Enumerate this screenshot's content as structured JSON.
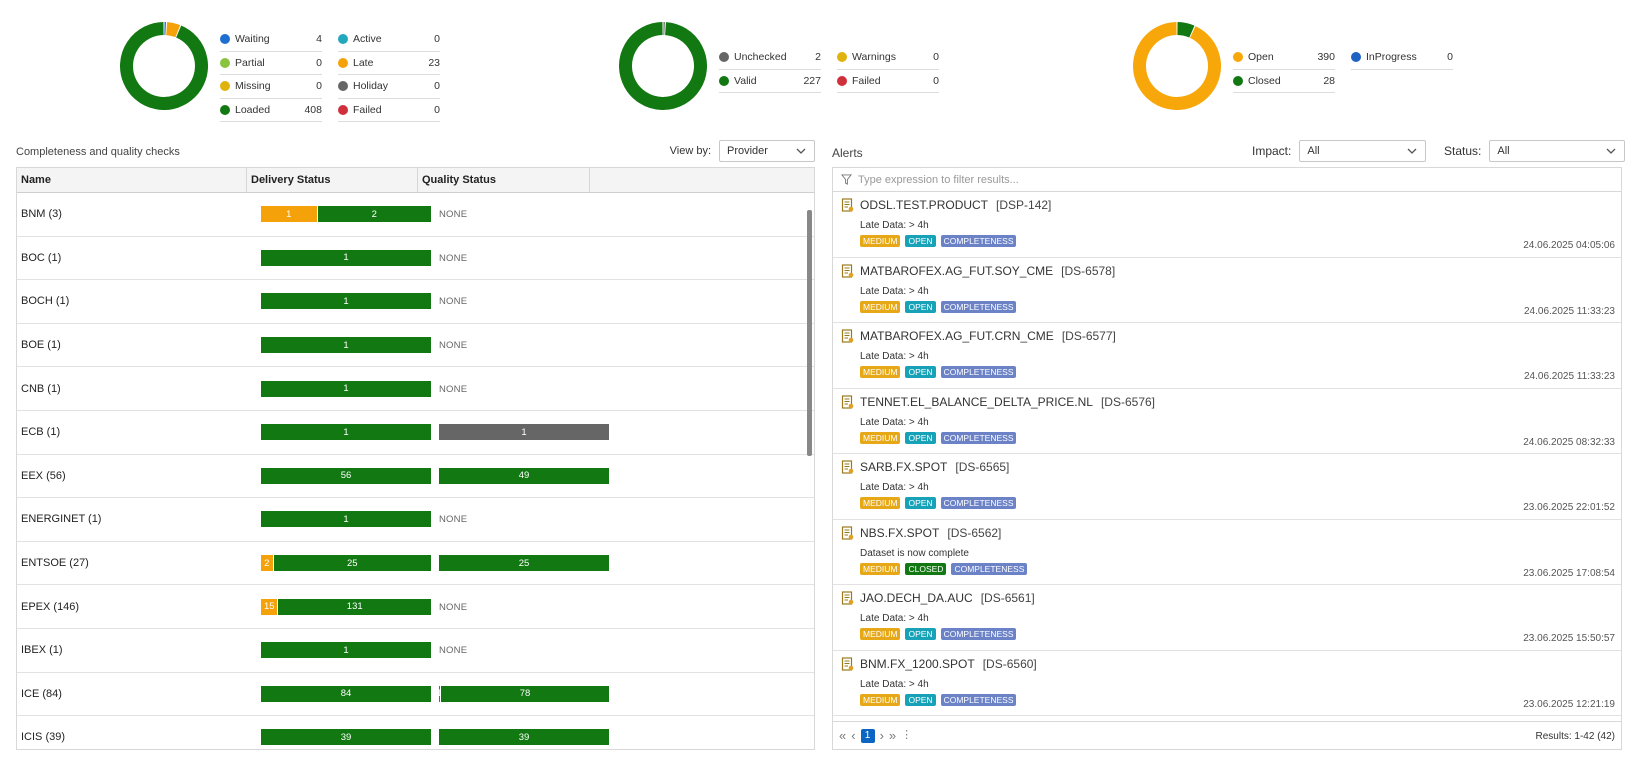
{
  "colors": {
    "blue": "#1e6fd0",
    "lightgreen": "#8ac43f",
    "yellow": "#e0b20e",
    "green": "#127812",
    "teal": "#22a7bd",
    "orange": "#f5a20a",
    "gray": "#666666",
    "red": "#d0303c",
    "open_orange": "#f7a70a",
    "inprogress_blue": "#1e62c4"
  },
  "summaries": [
    {
      "legend": [
        [
          {
            "label": "Waiting",
            "value": "4",
            "color": "#1e6fd0"
          },
          {
            "label": "Partial",
            "value": "0",
            "color": "#8ac43f"
          },
          {
            "label": "Missing",
            "value": "0",
            "color": "#e0b20e"
          },
          {
            "label": "Loaded",
            "value": "408",
            "color": "#127812"
          }
        ],
        [
          {
            "label": "Active",
            "value": "0",
            "color": "#22a7bd"
          },
          {
            "label": "Late",
            "value": "23",
            "color": "#f5a20a"
          },
          {
            "label": "Holiday",
            "value": "0",
            "color": "#666666"
          },
          {
            "label": "Failed",
            "value": "0",
            "color": "#d0303c"
          }
        ]
      ],
      "slices": [
        {
          "value": 4,
          "color": "#1e6fd0"
        },
        {
          "value": 23,
          "color": "#f5a20a"
        },
        {
          "value": 408,
          "color": "#127812"
        }
      ]
    },
    {
      "legend": [
        [
          {
            "label": "Unchecked",
            "value": "2",
            "color": "#666666"
          },
          {
            "label": "Valid",
            "value": "227",
            "color": "#127812"
          }
        ],
        [
          {
            "label": "Warnings",
            "value": "0",
            "color": "#e0b20e"
          },
          {
            "label": "Failed",
            "value": "0",
            "color": "#d0303c"
          }
        ]
      ],
      "slices": [
        {
          "value": 2,
          "color": "#666666"
        },
        {
          "value": 227,
          "color": "#127812"
        }
      ]
    },
    {
      "legend": [
        [
          {
            "label": "Open",
            "value": "390",
            "color": "#f7a70a"
          },
          {
            "label": "Closed",
            "value": "28",
            "color": "#127812"
          }
        ],
        [
          {
            "label": "InProgress",
            "value": "0",
            "color": "#1e62c4"
          }
        ]
      ],
      "slices": [
        {
          "value": 28,
          "color": "#127812"
        },
        {
          "value": 390,
          "color": "#f7a70a"
        }
      ]
    }
  ],
  "completeness": {
    "title": "Completeness and quality checks",
    "view_by_label": "View by:",
    "view_by_value": "Provider",
    "columns": [
      "Name",
      "Delivery Status",
      "Quality Status"
    ],
    "none_text": "NONE",
    "rows": [
      {
        "name": "BNM (3)",
        "delivery": [
          {
            "v": 1,
            "c": "#f5a20a"
          },
          {
            "v": 2,
            "c": "#127812"
          }
        ],
        "quality": []
      },
      {
        "name": "BOC (1)",
        "delivery": [
          {
            "v": 1,
            "c": "#127812"
          }
        ],
        "quality": []
      },
      {
        "name": "BOCH (1)",
        "delivery": [
          {
            "v": 1,
            "c": "#127812"
          }
        ],
        "quality": []
      },
      {
        "name": "BOE (1)",
        "delivery": [
          {
            "v": 1,
            "c": "#127812"
          }
        ],
        "quality": []
      },
      {
        "name": "CNB (1)",
        "delivery": [
          {
            "v": 1,
            "c": "#127812"
          }
        ],
        "quality": []
      },
      {
        "name": "ECB (1)",
        "delivery": [
          {
            "v": 1,
            "c": "#127812"
          }
        ],
        "quality": [
          {
            "v": 1,
            "c": "#666666"
          }
        ]
      },
      {
        "name": "EEX (56)",
        "delivery": [
          {
            "v": 56,
            "c": "#127812"
          }
        ],
        "quality": [
          {
            "v": 49,
            "c": "#127812"
          }
        ]
      },
      {
        "name": "ENERGINET (1)",
        "delivery": [
          {
            "v": 1,
            "c": "#127812"
          }
        ],
        "quality": []
      },
      {
        "name": "ENTSOE (27)",
        "delivery": [
          {
            "v": 2,
            "c": "#f5a20a"
          },
          {
            "v": 25,
            "c": "#127812"
          }
        ],
        "quality": [
          {
            "v": 25,
            "c": "#127812"
          }
        ]
      },
      {
        "name": "EPEX (146)",
        "delivery": [
          {
            "v": 15,
            "c": "#f5a20a"
          },
          {
            "v": 131,
            "c": "#127812"
          }
        ],
        "quality": []
      },
      {
        "name": "IBEX (1)",
        "delivery": [
          {
            "v": 1,
            "c": "#127812"
          }
        ],
        "quality": []
      },
      {
        "name": "ICE (84)",
        "delivery": [
          {
            "v": 84,
            "c": "#127812"
          }
        ],
        "quality": [
          {
            "v": 1,
            "c": "#666666"
          },
          {
            "v": 78,
            "c": "#127812"
          }
        ]
      },
      {
        "name": "ICIS (39)",
        "delivery": [
          {
            "v": 39,
            "c": "#127812"
          }
        ],
        "quality": [
          {
            "v": 39,
            "c": "#127812"
          }
        ]
      }
    ]
  },
  "alerts": {
    "title": "Alerts",
    "impact_label": "Impact:",
    "impact_value": "All",
    "status_label": "Status:",
    "status_value": "All",
    "filter_placeholder": "Type expression to filter results...",
    "items": [
      {
        "name": "ODSL.TEST.PRODUCT",
        "code": "[DSP-142]",
        "desc": "Late Data: > 4h",
        "impact": "MEDIUM",
        "status": "OPEN",
        "type": "COMPLETENESS",
        "time": "24.06.2025 04:05:06"
      },
      {
        "name": "MATBAROFEX.AG_FUT.SOY_CME",
        "code": "[DS-6578]",
        "desc": "Late Data: > 4h",
        "impact": "MEDIUM",
        "status": "OPEN",
        "type": "COMPLETENESS",
        "time": "24.06.2025 11:33:23"
      },
      {
        "name": "MATBAROFEX.AG_FUT.CRN_CME",
        "code": "[DS-6577]",
        "desc": "Late Data: > 4h",
        "impact": "MEDIUM",
        "status": "OPEN",
        "type": "COMPLETENESS",
        "time": "24.06.2025 11:33:23"
      },
      {
        "name": "TENNET.EL_BALANCE_DELTA_PRICE.NL",
        "code": "[DS-6576]",
        "desc": "Late Data: > 4h",
        "impact": "MEDIUM",
        "status": "OPEN",
        "type": "COMPLETENESS",
        "time": "24.06.2025 08:32:33"
      },
      {
        "name": "SARB.FX.SPOT",
        "code": "[DS-6565]",
        "desc": "Late Data: > 4h",
        "impact": "MEDIUM",
        "status": "OPEN",
        "type": "COMPLETENESS",
        "time": "23.06.2025 22:01:52"
      },
      {
        "name": "NBS.FX.SPOT",
        "code": "[DS-6562]",
        "desc": "Dataset is now complete",
        "impact": "MEDIUM",
        "status": "CLOSED",
        "type": "COMPLETENESS",
        "time": "23.06.2025 17:08:54"
      },
      {
        "name": "JAO.DECH_DA.AUC",
        "code": "[DS-6561]",
        "desc": "Late Data: > 4h",
        "impact": "MEDIUM",
        "status": "OPEN",
        "type": "COMPLETENESS",
        "time": "23.06.2025 15:50:57"
      },
      {
        "name": "BNM.FX_1200.SPOT",
        "code": "[DS-6560]",
        "desc": "Late Data: > 4h",
        "impact": "MEDIUM",
        "status": "OPEN",
        "type": "COMPLETENESS",
        "time": "23.06.2025 12:21:19"
      }
    ],
    "pager": {
      "first": "«",
      "prev": "‹",
      "page": "1",
      "next": "›",
      "last": "»",
      "more": "⋮",
      "results": "Results: 1-42 (42)"
    }
  }
}
